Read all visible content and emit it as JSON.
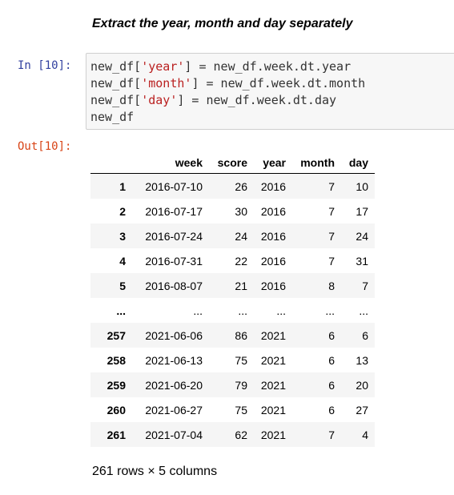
{
  "markdown": {
    "heading": "Extract the year, month and day separately"
  },
  "input_cell": {
    "prompt": "In [10]:",
    "lines": [
      [
        "new_df[",
        "'year'",
        "] = new_df.week.dt.year"
      ],
      [
        "new_df[",
        "'month'",
        "] = new_df.week.dt.month"
      ],
      [
        "new_df[",
        "'day'",
        "] = new_df.week.dt.day"
      ],
      [
        "new_df",
        "",
        ""
      ]
    ]
  },
  "output_cell": {
    "prompt": "Out[10]:",
    "dataframe": {
      "columns": [
        "",
        "week",
        "score",
        "year",
        "month",
        "day"
      ],
      "rows": [
        [
          "1",
          "2016-07-10",
          "26",
          "2016",
          "7",
          "10"
        ],
        [
          "2",
          "2016-07-17",
          "30",
          "2016",
          "7",
          "17"
        ],
        [
          "3",
          "2016-07-24",
          "24",
          "2016",
          "7",
          "24"
        ],
        [
          "4",
          "2016-07-31",
          "22",
          "2016",
          "7",
          "31"
        ],
        [
          "5",
          "2016-08-07",
          "21",
          "2016",
          "8",
          "7"
        ],
        [
          "...",
          "...",
          "...",
          "...",
          "...",
          "..."
        ],
        [
          "257",
          "2021-06-06",
          "86",
          "2021",
          "6",
          "6"
        ],
        [
          "258",
          "2021-06-13",
          "75",
          "2021",
          "6",
          "13"
        ],
        [
          "259",
          "2021-06-20",
          "79",
          "2021",
          "6",
          "20"
        ],
        [
          "260",
          "2021-06-27",
          "75",
          "2021",
          "6",
          "27"
        ],
        [
          "261",
          "2021-07-04",
          "62",
          "2021",
          "7",
          "4"
        ]
      ]
    },
    "summary": "261 rows × 5 columns"
  },
  "colors": {
    "in_prompt": "#303f9f",
    "out_prompt": "#d84315",
    "string_literal": "#ba2121",
    "cell_background": "#f7f7f7",
    "row_stripe": "#f5f5f5"
  }
}
